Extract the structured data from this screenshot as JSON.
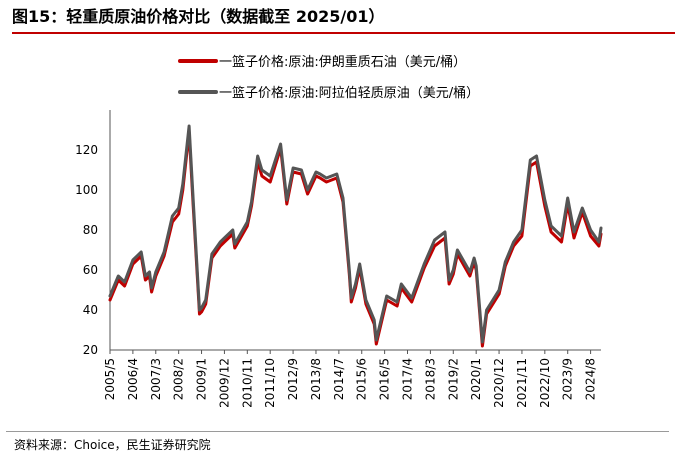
{
  "title": "图15：轻重质原油价格对比（数据截至 2025/01）",
  "source": "资料来源：Choice，民生证券研究院",
  "chart_data": {
    "type": "line",
    "title": "图15：轻重质原油价格对比（数据截至 2025/01）",
    "xlabel": "",
    "ylabel": "",
    "ylim": [
      20,
      130
    ],
    "yticks": [
      "20",
      "40",
      "60",
      "80",
      "100",
      "120"
    ],
    "xticks": [
      "2005/5",
      "2006/4",
      "2007/3",
      "2008/2",
      "2009/1",
      "2009/12",
      "2010/11",
      "2011/10",
      "2012/9",
      "2013/8",
      "2014/7",
      "2015/6",
      "2016/5",
      "2017/4",
      "2018/3",
      "2019/2",
      "2020/1",
      "2020/12",
      "2021/11",
      "2022/10",
      "2023/9",
      "2024/8"
    ],
    "grid": false,
    "legend_position": "top-center",
    "series": [
      {
        "name": "一篮子价格:原油:伊朗重质石油（美元/桶）",
        "color": "#c00000",
        "points": [
          [
            "2005/5",
            45
          ],
          [
            "2005/9",
            55
          ],
          [
            "2005/12",
            52
          ],
          [
            "2006/4",
            63
          ],
          [
            "2006/8",
            67
          ],
          [
            "2006/10",
            55
          ],
          [
            "2006/12",
            57
          ],
          [
            "2007/1",
            49
          ],
          [
            "2007/3",
            57
          ],
          [
            "2007/7",
            67
          ],
          [
            "2007/11",
            84
          ],
          [
            "2008/2",
            88
          ],
          [
            "2008/4",
            100
          ],
          [
            "2008/7",
            129
          ],
          [
            "2008/9",
            92
          ],
          [
            "2008/12",
            38
          ],
          [
            "2009/1",
            39
          ],
          [
            "2009/3",
            43
          ],
          [
            "2009/6",
            66
          ],
          [
            "2009/10",
            72
          ],
          [
            "2009/12",
            74
          ],
          [
            "2010/4",
            78
          ],
          [
            "2010/5",
            71
          ],
          [
            "2010/11",
            82
          ],
          [
            "2011/1",
            92
          ],
          [
            "2011/4",
            114
          ],
          [
            "2011/6",
            107
          ],
          [
            "2011/10",
            104
          ],
          [
            "2012/3",
            121
          ],
          [
            "2012/6",
            93
          ],
          [
            "2012/9",
            109
          ],
          [
            "2013/1",
            108
          ],
          [
            "2013/4",
            98
          ],
          [
            "2013/8",
            107
          ],
          [
            "2013/10",
            106
          ],
          [
            "2014/1",
            104
          ],
          [
            "2014/6",
            106
          ],
          [
            "2014/9",
            94
          ],
          [
            "2014/12",
            58
          ],
          [
            "2015/1",
            44
          ],
          [
            "2015/3",
            51
          ],
          [
            "2015/5",
            61
          ],
          [
            "2015/8",
            43
          ],
          [
            "2015/12",
            33
          ],
          [
            "2016/1",
            23
          ],
          [
            "2016/6",
            45
          ],
          [
            "2016/11",
            42
          ],
          [
            "2017/1",
            51
          ],
          [
            "2017/6",
            44
          ],
          [
            "2017/12",
            61
          ],
          [
            "2018/5",
            72
          ],
          [
            "2018/10",
            76
          ],
          [
            "2018/12",
            53
          ],
          [
            "2019/2",
            58
          ],
          [
            "2019/4",
            68
          ],
          [
            "2019/10",
            57
          ],
          [
            "2019/12",
            64
          ],
          [
            "2020/1",
            60
          ],
          [
            "2020/4",
            22
          ],
          [
            "2020/6",
            38
          ],
          [
            "2020/12",
            48
          ],
          [
            "2021/3",
            62
          ],
          [
            "2021/7",
            72
          ],
          [
            "2021/11",
            77
          ],
          [
            "2022/3",
            112
          ],
          [
            "2022/6",
            114
          ],
          [
            "2022/10",
            92
          ],
          [
            "2023/1",
            79
          ],
          [
            "2023/6",
            74
          ],
          [
            "2023/9",
            93
          ],
          [
            "2023/12",
            76
          ],
          [
            "2024/4",
            89
          ],
          [
            "2024/8",
            77
          ],
          [
            "2024/12",
            72
          ],
          [
            "2025/1",
            78
          ]
        ]
      },
      {
        "name": "一篮子价格:原油:阿拉伯轻质原油（美元/桶）",
        "color": "#555555",
        "points": [
          [
            "2005/5",
            47
          ],
          [
            "2005/9",
            57
          ],
          [
            "2005/12",
            54
          ],
          [
            "2006/4",
            65
          ],
          [
            "2006/8",
            69
          ],
          [
            "2006/10",
            57
          ],
          [
            "2006/12",
            59
          ],
          [
            "2007/1",
            51
          ],
          [
            "2007/3",
            59
          ],
          [
            "2007/7",
            69
          ],
          [
            "2007/11",
            87
          ],
          [
            "2008/2",
            91
          ],
          [
            "2008/4",
            103
          ],
          [
            "2008/7",
            132
          ],
          [
            "2008/9",
            95
          ],
          [
            "2008/12",
            40
          ],
          [
            "2009/1",
            41
          ],
          [
            "2009/3",
            45
          ],
          [
            "2009/6",
            68
          ],
          [
            "2009/10",
            74
          ],
          [
            "2009/12",
            76
          ],
          [
            "2010/4",
            80
          ],
          [
            "2010/5",
            73
          ],
          [
            "2010/11",
            84
          ],
          [
            "2011/1",
            94
          ],
          [
            "2011/4",
            117
          ],
          [
            "2011/6",
            110
          ],
          [
            "2011/10",
            107
          ],
          [
            "2012/3",
            123
          ],
          [
            "2012/6",
            95
          ],
          [
            "2012/9",
            111
          ],
          [
            "2013/1",
            110
          ],
          [
            "2013/4",
            100
          ],
          [
            "2013/8",
            109
          ],
          [
            "2013/10",
            108
          ],
          [
            "2014/1",
            106
          ],
          [
            "2014/6",
            108
          ],
          [
            "2014/9",
            96
          ],
          [
            "2014/12",
            60
          ],
          [
            "2015/1",
            46
          ],
          [
            "2015/3",
            53
          ],
          [
            "2015/5",
            63
          ],
          [
            "2015/8",
            45
          ],
          [
            "2015/12",
            35
          ],
          [
            "2016/1",
            25
          ],
          [
            "2016/6",
            47
          ],
          [
            "2016/11",
            44
          ],
          [
            "2017/1",
            53
          ],
          [
            "2017/6",
            46
          ],
          [
            "2017/12",
            63
          ],
          [
            "2018/5",
            75
          ],
          [
            "2018/10",
            79
          ],
          [
            "2018/12",
            55
          ],
          [
            "2019/2",
            60
          ],
          [
            "2019/4",
            70
          ],
          [
            "2019/10",
            59
          ],
          [
            "2019/12",
            66
          ],
          [
            "2020/1",
            62
          ],
          [
            "2020/4",
            24
          ],
          [
            "2020/6",
            40
          ],
          [
            "2020/12",
            50
          ],
          [
            "2021/3",
            64
          ],
          [
            "2021/7",
            74
          ],
          [
            "2021/11",
            80
          ],
          [
            "2022/3",
            115
          ],
          [
            "2022/6",
            117
          ],
          [
            "2022/10",
            95
          ],
          [
            "2023/1",
            82
          ],
          [
            "2023/6",
            77
          ],
          [
            "2023/9",
            96
          ],
          [
            "2023/12",
            79
          ],
          [
            "2024/4",
            91
          ],
          [
            "2024/8",
            80
          ],
          [
            "2024/12",
            74
          ],
          [
            "2025/1",
            81
          ]
        ]
      }
    ]
  }
}
